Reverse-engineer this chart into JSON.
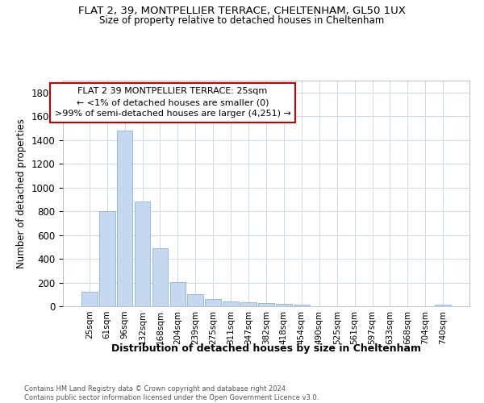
{
  "title_line1": "FLAT 2, 39, MONTPELLIER TERRACE, CHELTENHAM, GL50 1UX",
  "title_line2": "Size of property relative to detached houses in Cheltenham",
  "xlabel": "Distribution of detached houses by size in Cheltenham",
  "ylabel": "Number of detached properties",
  "categories": [
    "25sqm",
    "61sqm",
    "96sqm",
    "132sqm",
    "168sqm",
    "204sqm",
    "239sqm",
    "275sqm",
    "311sqm",
    "347sqm",
    "382sqm",
    "418sqm",
    "454sqm",
    "490sqm",
    "525sqm",
    "561sqm",
    "597sqm",
    "633sqm",
    "668sqm",
    "704sqm",
    "740sqm"
  ],
  "values": [
    120,
    800,
    1480,
    880,
    490,
    205,
    100,
    62,
    40,
    35,
    28,
    22,
    15,
    0,
    0,
    0,
    0,
    0,
    0,
    0,
    15
  ],
  "bar_color": "#c5d8f0",
  "bar_edge_color": "#7aaad4",
  "ylim": [
    0,
    1900
  ],
  "yticks": [
    0,
    200,
    400,
    600,
    800,
    1000,
    1200,
    1400,
    1600,
    1800
  ],
  "annotation_text": "FLAT 2 39 MONTPELLIER TERRACE: 25sqm\n← <1% of detached houses are smaller (0)\n>99% of semi-detached houses are larger (4,251) →",
  "annotation_box_color": "#ffffff",
  "annotation_border_color": "#cc0000",
  "footer_text": "Contains HM Land Registry data © Crown copyright and database right 2024.\nContains public sector information licensed under the Open Government Licence v3.0.",
  "background_color": "#ffffff",
  "grid_color": "#d0d8e8"
}
